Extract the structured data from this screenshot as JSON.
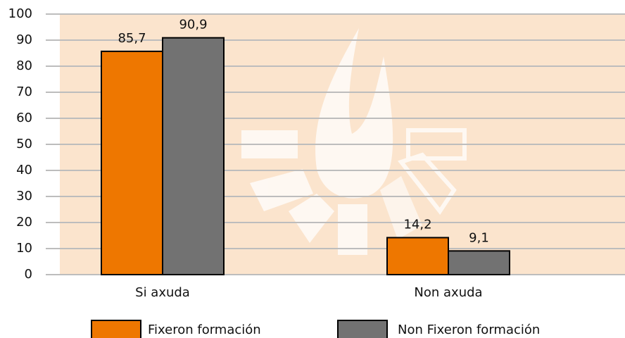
{
  "chart_data": {
    "type": "bar",
    "categories": [
      "Si axuda",
      "Non axuda"
    ],
    "series": [
      {
        "name": "Fixeron formación",
        "color": "#ee7700",
        "values": [
          85.7,
          14.2
        ],
        "value_labels": [
          "85,7",
          "14,2"
        ]
      },
      {
        "name": "Non Fixeron formación",
        "color": "#727272",
        "values": [
          90.9,
          9.1
        ],
        "value_labels": [
          "90,9",
          "9,1"
        ]
      }
    ],
    "ylim": [
      0,
      100
    ],
    "yticks": [
      0,
      10,
      20,
      30,
      40,
      50,
      60,
      70,
      80,
      90,
      100
    ],
    "grid": true
  }
}
